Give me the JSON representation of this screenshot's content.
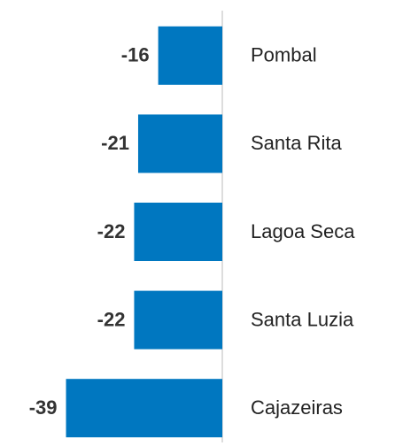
{
  "chart_data": {
    "type": "bar",
    "orientation": "horizontal",
    "categories": [
      "Pombal",
      "Santa Rita",
      "Lagoa Seca",
      "Santa Luzia",
      "Cajazeiras"
    ],
    "values": [
      -16,
      -21,
      -22,
      -22,
      -39
    ],
    "color": "#0077c0",
    "xlim": [
      -40,
      0
    ]
  }
}
